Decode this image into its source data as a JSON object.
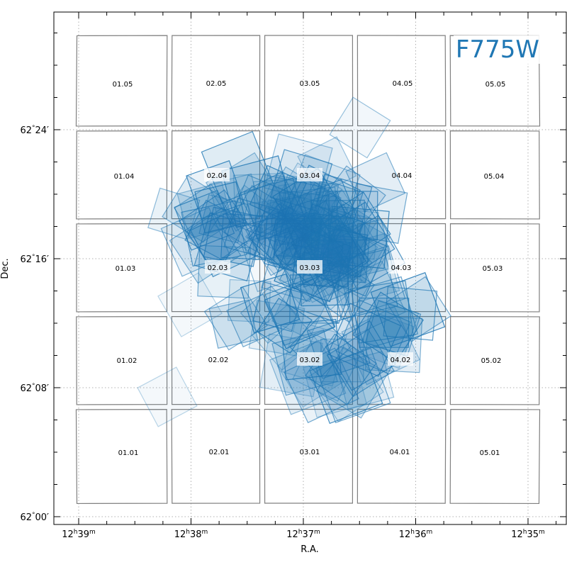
{
  "chart_data": {
    "type": "scatter",
    "filter": "F775W",
    "xlabel": "R.A.",
    "ylabel": "Dec.",
    "x_ticks": [
      {
        "h": "12",
        "m": "39"
      },
      {
        "h": "12",
        "m": "38"
      },
      {
        "h": "12",
        "m": "37"
      },
      {
        "h": "12",
        "m": "36"
      },
      {
        "h": "12",
        "m": "35"
      }
    ],
    "y_ticks": [
      {
        "deg": "62",
        "min": "24"
      },
      {
        "deg": "62",
        "min": "16"
      },
      {
        "deg": "62",
        "min": "08"
      },
      {
        "deg": "62",
        "min": "00"
      }
    ],
    "grid": true,
    "grid_tiles": [
      "01.05",
      "02.05",
      "03.05",
      "04.05",
      "05.05",
      "01.04",
      "02.04",
      "03.04",
      "04.04",
      "05.04",
      "01.03",
      "02.03",
      "03.03",
      "04.03",
      "05.03",
      "01.02",
      "02.02",
      "03.02",
      "04.02",
      "05.02",
      "01.01",
      "02.01",
      "03.01",
      "04.01",
      "05.01"
    ],
    "highlighted_tiles": [
      "02.04",
      "03.04",
      "02.03",
      "03.03",
      "04.03",
      "03.02",
      "04.02"
    ],
    "colors": {
      "footprint": "#1f77b4",
      "tile_outline": "#808080",
      "filter_label": "#1f77b4",
      "grid": "#b0b0b0"
    }
  }
}
